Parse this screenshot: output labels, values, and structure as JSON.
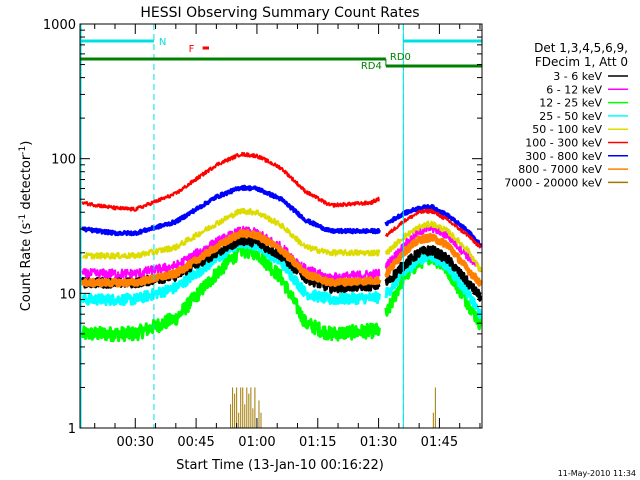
{
  "chart_data": {
    "type": "line",
    "title": "HESSI Observing Summary Count Rates",
    "xlabel": "Start Time (13-Jan-10 00:16:22)",
    "ylabel_main": "Count Rate (s",
    "ylabel_sup1": "-1",
    "ylabel_mid": " detector",
    "ylabel_sup2": "-1",
    "ylabel_end": ")",
    "y_scale": "log",
    "ylim": [
      1,
      1000
    ],
    "y_ticks": [
      {
        "value": 1,
        "label": "1"
      },
      {
        "value": 10,
        "label": "10"
      },
      {
        "value": 100,
        "label": "100"
      },
      {
        "value": 1000,
        "label": "1000"
      }
    ],
    "xlim_minutes": [
      16.37,
      115.5
    ],
    "x_ticks": [
      {
        "minute": 30,
        "label": "00:30"
      },
      {
        "minute": 45,
        "label": "00:45"
      },
      {
        "minute": 60,
        "label": "01:00"
      },
      {
        "minute": 75,
        "label": "01:15"
      },
      {
        "minute": 90,
        "label": "01:30"
      },
      {
        "minute": 105,
        "label": "01:45"
      }
    ],
    "legend_header": [
      "Det 1,3,4,5,6,9,",
      "FDecim 1, Att 0"
    ],
    "legend_position": "right",
    "series": [
      {
        "name": "3 - 6 keV",
        "color": "#000000",
        "lw": 3,
        "base": 12,
        "peak": 26,
        "late_base": 7,
        "late_peak": 20,
        "noise": 0.08,
        "data_orbit1": [
          [
            17,
            12
          ],
          [
            30,
            12
          ],
          [
            40,
            13.5
          ],
          [
            50,
            20
          ],
          [
            56,
            25
          ],
          [
            60,
            24
          ],
          [
            66,
            19
          ],
          [
            72,
            13
          ],
          [
            78,
            11
          ],
          [
            90,
            11.5
          ]
        ],
        "data_orbit2": [
          [
            92,
            12
          ],
          [
            96,
            16
          ],
          [
            100,
            20
          ],
          [
            103,
            21
          ],
          [
            107,
            18
          ],
          [
            112,
            12
          ],
          [
            115,
            9.5
          ]
        ]
      },
      {
        "name": "6 - 12 keV",
        "color": "#ff00ff",
        "lw": 2,
        "base": 14,
        "peak": 30,
        "noise": 0.08,
        "data_orbit1": [
          [
            17,
            14
          ],
          [
            30,
            14
          ],
          [
            40,
            16
          ],
          [
            50,
            24
          ],
          [
            56,
            29
          ],
          [
            60,
            28
          ],
          [
            66,
            22
          ],
          [
            72,
            15
          ],
          [
            78,
            13
          ],
          [
            90,
            14
          ]
        ],
        "data_orbit2": [
          [
            92,
            16
          ],
          [
            96,
            22
          ],
          [
            100,
            29
          ],
          [
            103,
            31
          ],
          [
            107,
            27
          ],
          [
            112,
            19
          ],
          [
            115,
            15
          ]
        ]
      },
      {
        "name": "12 - 25 keV",
        "color": "#00ff00",
        "lw": 3,
        "noise": 0.12,
        "data_orbit1": [
          [
            17,
            5
          ],
          [
            30,
            5
          ],
          [
            40,
            6.5
          ],
          [
            50,
            14
          ],
          [
            56,
            21
          ],
          [
            60,
            20
          ],
          [
            66,
            13
          ],
          [
            72,
            6
          ],
          [
            78,
            5
          ],
          [
            90,
            5.3
          ]
        ],
        "data_orbit2": [
          [
            92,
            7
          ],
          [
            96,
            13
          ],
          [
            100,
            17
          ],
          [
            103,
            19
          ],
          [
            107,
            15
          ],
          [
            112,
            8.5
          ],
          [
            115,
            6
          ]
        ]
      },
      {
        "name": "25 - 50 keV",
        "color": "#00ffff",
        "lw": 3,
        "noise": 0.09,
        "data_orbit1": [
          [
            17,
            9
          ],
          [
            30,
            9
          ],
          [
            40,
            11
          ],
          [
            50,
            18
          ],
          [
            56,
            24
          ],
          [
            60,
            23
          ],
          [
            66,
            17
          ],
          [
            72,
            10
          ],
          [
            78,
            9
          ],
          [
            90,
            9.3
          ]
        ],
        "data_orbit2": [
          [
            92,
            10
          ],
          [
            96,
            14
          ],
          [
            100,
            18
          ],
          [
            103,
            19
          ],
          [
            107,
            16
          ],
          [
            112,
            10
          ],
          [
            115,
            7
          ]
        ]
      },
      {
        "name": "50 - 100 keV",
        "color": "#dcdc00",
        "lw": 2,
        "noise": 0.05,
        "data_orbit1": [
          [
            17,
            19
          ],
          [
            30,
            19
          ],
          [
            40,
            22
          ],
          [
            50,
            33
          ],
          [
            56,
            41
          ],
          [
            60,
            40
          ],
          [
            66,
            32
          ],
          [
            72,
            22
          ],
          [
            78,
            20
          ],
          [
            90,
            20
          ]
        ],
        "data_orbit2": [
          [
            92,
            20
          ],
          [
            96,
            26
          ],
          [
            100,
            31
          ],
          [
            103,
            33
          ],
          [
            107,
            29
          ],
          [
            112,
            21
          ],
          [
            115,
            15
          ]
        ]
      },
      {
        "name": "100 - 300 keV",
        "color": "#ff0000",
        "lw": 2,
        "noise": 0.03,
        "data_orbit1": [
          [
            17,
            47
          ],
          [
            25,
            43
          ],
          [
            30,
            42
          ],
          [
            40,
            55
          ],
          [
            50,
            90
          ],
          [
            56,
            108
          ],
          [
            60,
            105
          ],
          [
            66,
            85
          ],
          [
            72,
            57
          ],
          [
            78,
            45
          ],
          [
            88,
            47
          ],
          [
            90,
            50
          ]
        ],
        "data_orbit2": [
          [
            92,
            27
          ],
          [
            96,
            34
          ],
          [
            100,
            40
          ],
          [
            103,
            41
          ],
          [
            107,
            35
          ],
          [
            112,
            27
          ],
          [
            115,
            22
          ]
        ]
      },
      {
        "name": "300 - 800 keV",
        "color": "#0000ff",
        "lw": 3,
        "noise": 0.03,
        "data_orbit1": [
          [
            17,
            30
          ],
          [
            25,
            28
          ],
          [
            30,
            28
          ],
          [
            40,
            34
          ],
          [
            50,
            52
          ],
          [
            56,
            61
          ],
          [
            60,
            60
          ],
          [
            66,
            50
          ],
          [
            72,
            35
          ],
          [
            78,
            29
          ],
          [
            90,
            29
          ]
        ],
        "data_orbit2": [
          [
            92,
            33
          ],
          [
            96,
            39
          ],
          [
            100,
            43
          ],
          [
            103,
            44
          ],
          [
            107,
            38
          ],
          [
            112,
            29
          ],
          [
            115,
            23
          ]
        ]
      },
      {
        "name": "800 - 7000 keV",
        "color": "#ff8000",
        "lw": 4,
        "noise": 0.05,
        "data_orbit1": [
          [
            17,
            12
          ],
          [
            30,
            12
          ],
          [
            40,
            14
          ],
          [
            50,
            22
          ],
          [
            56,
            28
          ],
          [
            60,
            27
          ],
          [
            66,
            21
          ],
          [
            72,
            14
          ],
          [
            78,
            12
          ],
          [
            90,
            12.5
          ]
        ],
        "data_orbit2": [
          [
            92,
            14
          ],
          [
            96,
            20
          ],
          [
            100,
            25
          ],
          [
            103,
            26
          ],
          [
            107,
            23
          ],
          [
            112,
            15
          ],
          [
            115,
            12
          ]
        ]
      },
      {
        "name": "7000 - 20000 keV",
        "color": "#a07800",
        "lw": 1,
        "spikes_minutes": [
          53.5,
          54,
          54.5,
          55,
          55.5,
          56,
          56.5,
          57,
          57.5,
          58,
          58.5,
          59,
          59.5,
          60.5,
          61,
          103.5,
          104
        ],
        "spike_values": [
          1.5,
          2,
          1.8,
          2,
          1.3,
          2,
          2,
          1.5,
          2,
          1.8,
          2,
          1.4,
          2,
          1.6,
          1.3,
          1.3,
          2
        ]
      }
    ],
    "annotations": {
      "N": "N",
      "F": "F",
      "RD0": "RD0",
      "RD4": "RD4"
    },
    "night_color": "#00e0e0",
    "flare_color": "#ff0000",
    "decim_color": "#008000",
    "night_intervals_minutes": [
      [
        16.37,
        34.6
      ],
      [
        96.1,
        115.5
      ]
    ],
    "flare_interval_minutes": [
      46.6,
      47.2
    ],
    "rd0_interval_minutes": [
      16.37,
      91.8
    ],
    "rd4_interval_minutes": [
      91.8,
      115.5
    ]
  },
  "timestamp": "11-May-2010 11:34"
}
